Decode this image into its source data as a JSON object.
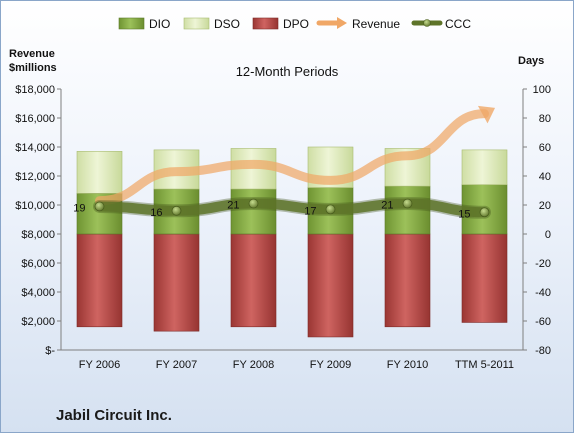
{
  "chart_data": {
    "type": "bar",
    "title": "12-Month Periods",
    "company": "Jabil Circuit Inc.",
    "categories": [
      "FY 2006",
      "FY 2007",
      "FY 2008",
      "FY 2009",
      "FY 2010",
      "TTM 5-2011"
    ],
    "left_axis": {
      "label_line1": "Revenue",
      "label_line2": "$millions",
      "range": [
        0,
        18000
      ],
      "ticks": [
        "$-",
        "$2,000",
        "$4,000",
        "$6,000",
        "$8,000",
        "$10,000",
        "$12,000",
        "$14,000",
        "$16,000",
        "$18,000"
      ]
    },
    "right_axis": {
      "label": "Days",
      "range": [
        -80,
        100
      ],
      "ticks": [
        "-80",
        "-60",
        "-40",
        "-20",
        "0",
        "20",
        "40",
        "60",
        "80",
        "100"
      ]
    },
    "series": [
      {
        "name": "DIO",
        "kind": "stacked-bar",
        "axis": "days",
        "color": "#8db04a",
        "values": [
          28,
          31,
          31,
          32,
          33,
          34
        ]
      },
      {
        "name": "DSO",
        "kind": "stacked-bar",
        "axis": "days",
        "color": "#dbe8b6",
        "values": [
          29,
          27,
          28,
          28,
          26,
          24
        ]
      },
      {
        "name": "DPO",
        "kind": "stacked-bar-negative",
        "axis": "days",
        "color": "#b84a47",
        "values": [
          -64,
          -67,
          -64,
          -71,
          -64,
          -61
        ]
      },
      {
        "name": "Revenue",
        "kind": "line",
        "axis": "revenue",
        "color": "#f0a766",
        "values": [
          10300,
          12300,
          12800,
          11700,
          13400,
          16300
        ]
      },
      {
        "name": "CCC",
        "kind": "line-markers",
        "axis": "days",
        "color": "#5e7429",
        "values": [
          19,
          16,
          21,
          17,
          21,
          15
        ],
        "labels": [
          "19",
          "16",
          "21",
          "17",
          "21",
          "15"
        ]
      }
    ],
    "grid": false,
    "legend_position": "top"
  }
}
